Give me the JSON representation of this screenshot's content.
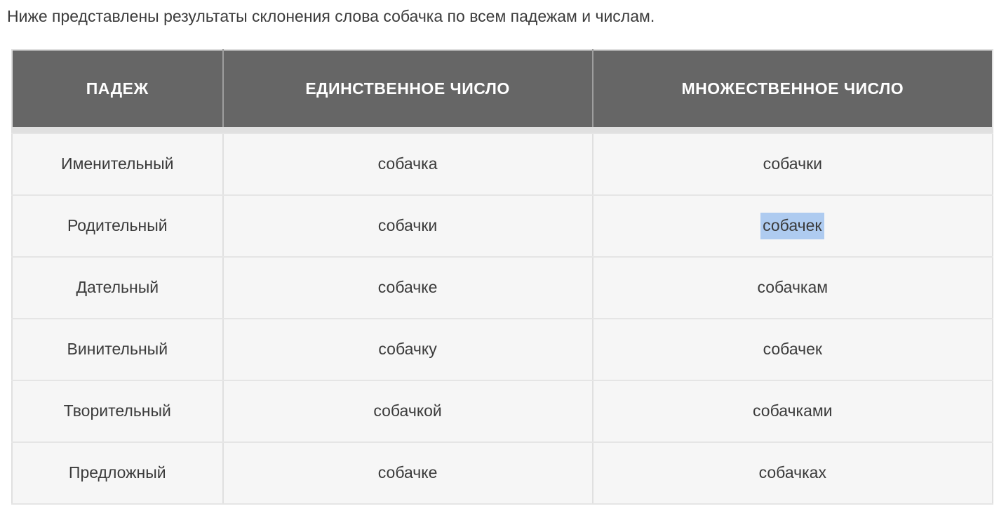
{
  "intro": {
    "text": "Ниже представлены результаты склонения слова собачка по всем падежам и числам."
  },
  "table": {
    "columns": [
      "ПАДЕЖ",
      "ЕДИНСТВЕННОЕ ЧИСЛО",
      "МНОЖЕСТВЕННОЕ ЧИСЛО"
    ],
    "rows": [
      {
        "case": "Именительный",
        "singular": "собачка",
        "plural": "собачки"
      },
      {
        "case": "Родительный",
        "singular": "собачки",
        "plural": "собачек",
        "plural_selected": true
      },
      {
        "case": "Дательный",
        "singular": "собачке",
        "plural": "собачкам"
      },
      {
        "case": "Винительный",
        "singular": "собачку",
        "plural": "собачек"
      },
      {
        "case": "Творительный",
        "singular": "собачкой",
        "plural": "собачками"
      },
      {
        "case": "Предложный",
        "singular": "собачке",
        "plural": "собачках"
      }
    ],
    "selection": {
      "row_index": 1,
      "column": "plural",
      "selected_text": "собачек"
    }
  },
  "colors": {
    "header_bg": "#666666",
    "header_text": "#ffffff",
    "header_divider": "#9e9e9e",
    "spacer_bg": "#e0e0e0",
    "row_bg": "#f6f6f6",
    "border_vertical": "#e0e0e0",
    "border_horizontal": "#e5e5e5",
    "body_text": "#3b3b3b",
    "selection_bg": "#aecbf0"
  }
}
